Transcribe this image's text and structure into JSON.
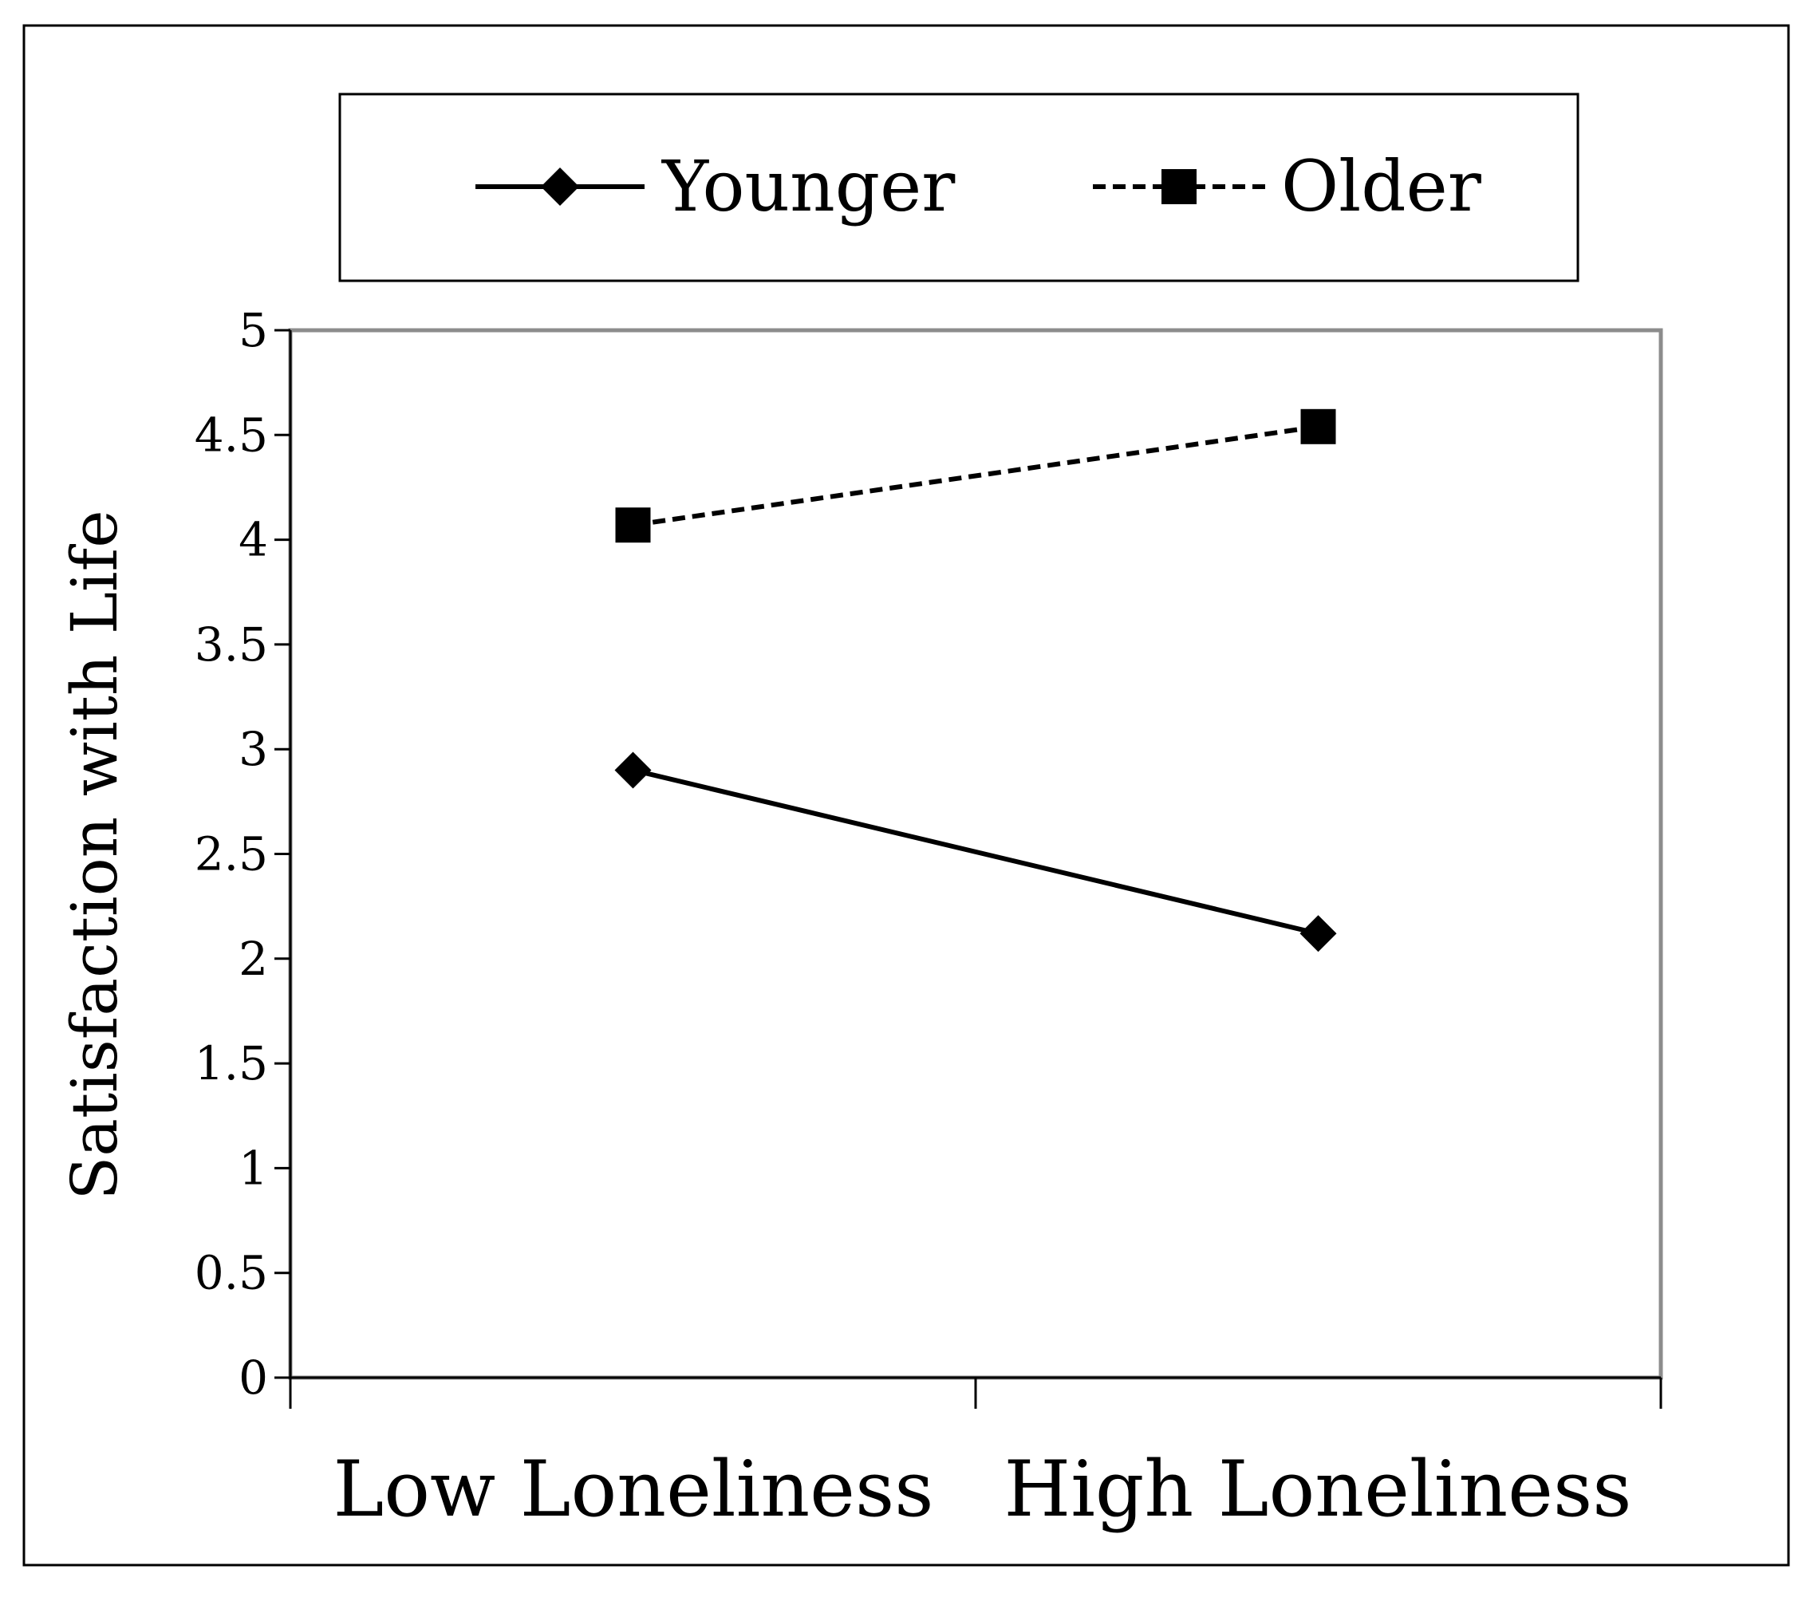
{
  "chart_data": {
    "type": "line",
    "title": "",
    "xlabel": "",
    "ylabel": "Satisfaction with Life",
    "categories": [
      "Low Loneliness",
      "High Loneliness"
    ],
    "series": [
      {
        "name": "Younger",
        "values": [
          2.9,
          2.12
        ],
        "line_style": "solid",
        "marker": "diamond"
      },
      {
        "name": "Older",
        "values": [
          4.07,
          4.54
        ],
        "line_style": "dashed",
        "marker": "square"
      }
    ],
    "ylim": [
      0,
      5
    ],
    "yticks": [
      "0",
      "0.5",
      "1",
      "1.5",
      "2",
      "2.5",
      "3",
      "3.5",
      "4",
      "4.5",
      "5"
    ],
    "grid": false,
    "legend_position": "top",
    "colors": {
      "line": "#000000",
      "plot_border": "#8c8c8c",
      "background": "#ffffff"
    }
  }
}
